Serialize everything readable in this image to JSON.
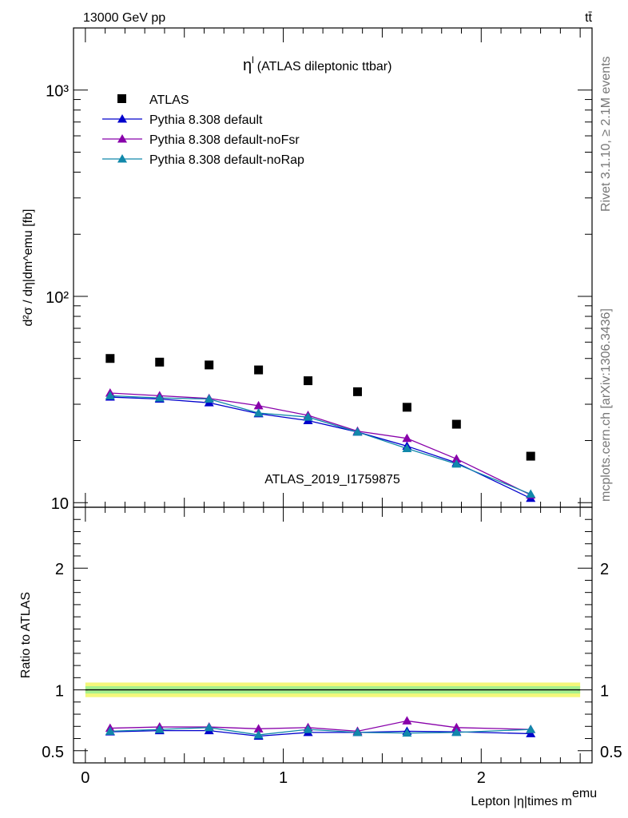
{
  "header": {
    "energy_label": "13000 GeV pp",
    "process_label": "tt̄"
  },
  "side": {
    "rivet": "Rivet 3.1.10, ≥ 2.1M events",
    "site": "mcplots.cern.ch [arXiv:1306.3436]"
  },
  "chart_data": [
    {
      "type": "scatter",
      "panel": "main",
      "title": "η^l (ATLAS dileptonic ttbar)",
      "title_main": "η",
      "title_sup": "l",
      "title_rest": "(ATLAS dileptonic ttbar)",
      "watermark": "ATLAS_2019_I1759875",
      "ylabel": "d²σ / dη|dm^emu [fb]",
      "y_scale": "log",
      "ylim": [
        9.5,
        2000
      ],
      "xlim": [
        -0.06,
        2.56
      ],
      "y_ticks": [
        {
          "value": 10,
          "label": "10"
        },
        {
          "value": 100,
          "label": "10²"
        },
        {
          "value": 1000,
          "label": "10³"
        }
      ],
      "legend_placement": "top-left",
      "series": [
        {
          "name": "ATLAS",
          "marker": "square",
          "color": "#000000",
          "x": [
            0.125,
            0.375,
            0.625,
            0.875,
            1.125,
            1.375,
            1.625,
            1.875,
            2.25
          ],
          "y": [
            50,
            48,
            46.5,
            44,
            39,
            34.5,
            29,
            24,
            16.8
          ]
        },
        {
          "name": "Pythia 8.308 default",
          "marker": "triangle",
          "color": "#0000cc",
          "x": [
            0.125,
            0.375,
            0.625,
            0.875,
            1.125,
            1.375,
            1.625,
            1.875,
            2.25
          ],
          "y": [
            32.5,
            31.8,
            30.5,
            27,
            25,
            22,
            18.8,
            15.6,
            10.5
          ]
        },
        {
          "name": "Pythia 8.308 default-noFsr",
          "marker": "triangle",
          "color": "#8800aa",
          "x": [
            0.125,
            0.375,
            0.625,
            0.875,
            1.125,
            1.375,
            1.625,
            1.875,
            2.25
          ],
          "y": [
            34,
            33,
            32,
            29.5,
            26.5,
            22.2,
            20.5,
            16.3,
            10.9
          ]
        },
        {
          "name": "Pythia 8.308 default-noRap",
          "marker": "triangle",
          "color": "#1188aa",
          "x": [
            0.125,
            0.375,
            0.625,
            0.875,
            1.125,
            1.375,
            1.625,
            1.875,
            2.25
          ],
          "y": [
            33,
            32.2,
            31.8,
            27.2,
            26,
            22,
            18.3,
            15.4,
            11
          ]
        }
      ]
    },
    {
      "type": "line",
      "panel": "ratio",
      "xlabel": "Lepton |η|times m^emu",
      "xlabel_main": "Lepton |η|times m",
      "xlabel_sup": "emu",
      "ylabel": "Ratio to ATLAS",
      "ylim": [
        0.4,
        2.5
      ],
      "xlim": [
        -0.06,
        2.56
      ],
      "x_ticks": [
        0,
        1,
        2
      ],
      "y_ticks": [
        0.5,
        1,
        2
      ],
      "reference": {
        "value": 1,
        "band_inner": [
          0.97,
          1.03
        ],
        "band_outer": [
          0.94,
          1.06
        ],
        "x_range": [
          0,
          2.5
        ]
      },
      "series": [
        {
          "name": "Pythia 8.308 default",
          "color": "#0000cc",
          "x": [
            0.125,
            0.375,
            0.625,
            0.875,
            1.125,
            1.375,
            1.625,
            1.875,
            2.25
          ],
          "y": [
            0.655,
            0.665,
            0.665,
            0.62,
            0.65,
            0.65,
            0.66,
            0.655,
            0.64
          ]
        },
        {
          "name": "Pythia 8.308 default-noFsr",
          "color": "#8800aa",
          "x": [
            0.125,
            0.375,
            0.625,
            0.875,
            1.125,
            1.375,
            1.625,
            1.875,
            2.25
          ],
          "y": [
            0.685,
            0.695,
            0.695,
            0.68,
            0.69,
            0.66,
            0.745,
            0.69,
            0.675
          ]
        },
        {
          "name": "Pythia 8.308 default-noRap",
          "color": "#1188aa",
          "x": [
            0.125,
            0.375,
            0.625,
            0.875,
            1.125,
            1.375,
            1.625,
            1.875,
            2.25
          ],
          "y": [
            0.66,
            0.675,
            0.69,
            0.63,
            0.675,
            0.65,
            0.645,
            0.65,
            0.675
          ]
        }
      ]
    }
  ]
}
